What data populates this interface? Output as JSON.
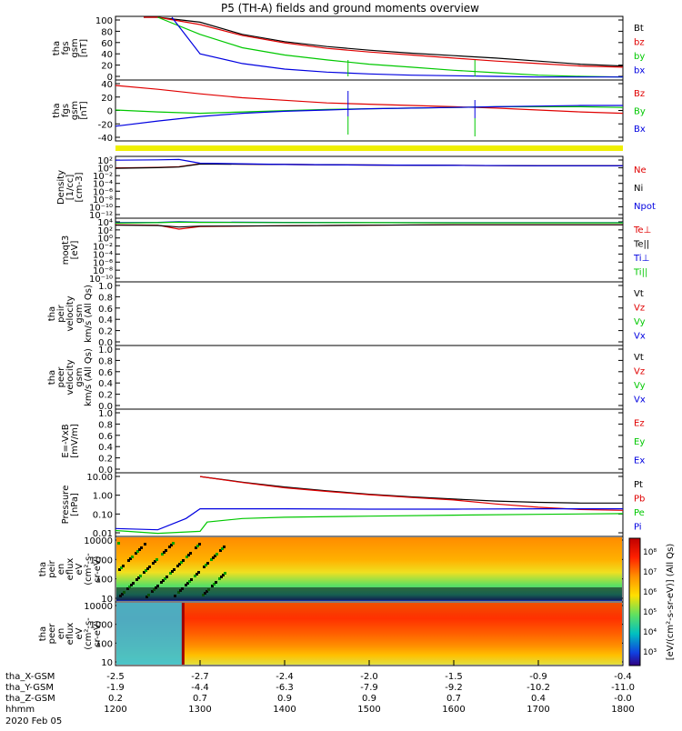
{
  "title": "P5 (TH-A) fields and ground moments overview",
  "date_label": "2020 Feb 05",
  "colors": {
    "black": "#000000",
    "red": "#e00000",
    "green": "#00c800",
    "blue": "#0000e0",
    "yellow": "#f0f000"
  },
  "time_axis": {
    "row_labels": [
      "tha_X-GSM",
      "tha_Y-GSM",
      "tha_Z-GSM",
      "hhmm"
    ],
    "columns": [
      [
        "-2.5",
        "-1.9",
        "0.2",
        "1200"
      ],
      [
        "-2.7",
        "-4.4",
        "0.7",
        "1300"
      ],
      [
        "-2.4",
        "-6.3",
        "0.9",
        "1400"
      ],
      [
        "-2.0",
        "-7.9",
        "0.9",
        "1500"
      ],
      [
        "-1.5",
        "-9.2",
        "0.7",
        "1600"
      ],
      [
        "-0.9",
        "-10.2",
        "0.4",
        "1700"
      ],
      [
        "-0.4",
        "-11.0",
        "-0.0",
        "1800"
      ]
    ]
  },
  "panels": [
    {
      "id": "fgs-gsm-mag",
      "ylabel": [
        "tha",
        "fgs",
        "gsm",
        "[nT]"
      ],
      "ticks": [
        "100",
        "80",
        "60",
        "40",
        "20",
        "0"
      ],
      "legend": [
        {
          "label": "Bt",
          "color": "#000000"
        },
        {
          "label": "bz",
          "color": "#e00000"
        },
        {
          "label": "by",
          "color": "#00c800"
        },
        {
          "label": "bx",
          "color": "#0000e0"
        }
      ]
    },
    {
      "id": "fgs-gsm-comp",
      "ylabel": [
        "tha",
        "fgs",
        "gsm",
        "[nT]"
      ],
      "ticks": [
        "40",
        "20",
        "0",
        "-20",
        "-40"
      ],
      "legend": [
        {
          "label": "Bz",
          "color": "#e00000"
        },
        {
          "label": "By",
          "color": "#00c800"
        },
        {
          "label": "Bx",
          "color": "#0000e0"
        }
      ]
    },
    {
      "id": "density",
      "ylabel": [
        "Density",
        "[1/cc]",
        "[cm-3]"
      ],
      "ticks": [
        "10²",
        "10⁰",
        "10⁻²",
        "10⁻⁴",
        "10⁻⁶",
        "10⁻⁸",
        "10⁻¹⁰",
        "10⁻¹²"
      ],
      "legend": [
        {
          "label": "Ne",
          "color": "#e00000"
        },
        {
          "label": "Ni",
          "color": "#000000"
        },
        {
          "label": "Npot",
          "color": "#0000e0"
        }
      ]
    },
    {
      "id": "temperature",
      "ylabel": [
        "moqt3",
        "[eV]"
      ],
      "ticks": [
        "10⁴",
        "10²",
        "10⁰",
        "10⁻²",
        "10⁻⁴",
        "10⁻⁶",
        "10⁻⁸",
        "10⁻¹⁰"
      ],
      "legend": [
        {
          "label": "Te⊥",
          "color": "#e00000"
        },
        {
          "label": "Te||",
          "color": "#000000"
        },
        {
          "label": "Ti⊥",
          "color": "#0000e0"
        },
        {
          "label": "Ti||",
          "color": "#00c800"
        }
      ]
    },
    {
      "id": "peir-velocity",
      "ylabel": [
        "tha",
        "peir",
        "velocity",
        "gsm",
        "km/s (All Qs)"
      ],
      "ticks": [
        "1.0",
        "0.8",
        "0.6",
        "0.4",
        "0.2",
        "0.0"
      ],
      "legend": [
        {
          "label": "Vt",
          "color": "#000000"
        },
        {
          "label": "Vz",
          "color": "#e00000"
        },
        {
          "label": "Vy",
          "color": "#00c800"
        },
        {
          "label": "Vx",
          "color": "#0000e0"
        }
      ]
    },
    {
      "id": "peer-velocity",
      "ylabel": [
        "tha",
        "peer",
        "velocity",
        "gsm",
        "km/s (All Qs)"
      ],
      "ticks": [
        "1.0",
        "0.8",
        "0.6",
        "0.4",
        "0.2",
        "0.0"
      ],
      "legend": [
        {
          "label": "Vt",
          "color": "#000000"
        },
        {
          "label": "Vz",
          "color": "#e00000"
        },
        {
          "label": "Vy",
          "color": "#00c800"
        },
        {
          "label": "Vx",
          "color": "#0000e0"
        }
      ]
    },
    {
      "id": "efield",
      "ylabel": [
        "E=-VxB",
        "[mV/m]"
      ],
      "ticks": [
        "1.0",
        "0.8",
        "0.6",
        "0.4",
        "0.2",
        "0.0"
      ],
      "legend": [
        {
          "label": "Ez",
          "color": "#e00000"
        },
        {
          "label": "Ey",
          "color": "#00c800"
        },
        {
          "label": "Ex",
          "color": "#0000e0"
        }
      ]
    },
    {
      "id": "pressure",
      "ylabel": [
        "Pressure",
        "[nPa]"
      ],
      "ticks": [
        "10.00",
        "1.00",
        "0.10",
        "0.01"
      ],
      "legend": [
        {
          "label": "Pt",
          "color": "#000000"
        },
        {
          "label": "Pb",
          "color": "#e00000"
        },
        {
          "label": "Pe",
          "color": "#00c800"
        },
        {
          "label": "Pi",
          "color": "#0000e0"
        }
      ]
    },
    {
      "id": "peir-spec",
      "ylabel": [
        "tha",
        "peir",
        "en",
        "eflux",
        "eV",
        "(cm²-s-",
        "sr-eV)"
      ],
      "ticks": [
        "10000",
        "1000",
        "100",
        "10"
      ]
    },
    {
      "id": "peer-spec",
      "ylabel": [
        "tha",
        "peer",
        "en",
        "eflux",
        "eV",
        "(cm²-s-",
        "sr-eV)"
      ],
      "ticks": [
        "10000",
        "1000",
        "100",
        "10"
      ]
    }
  ],
  "colorbar": {
    "ticks": [
      "10⁸",
      "10⁷",
      "10⁶",
      "10⁵",
      "10⁴",
      "10³"
    ],
    "label": "[eV/(cm²-s-sr-eV)] (All Qs)"
  },
  "chart_data": {
    "type": "line",
    "title": "P5 (TH-A) fields and ground moments overview",
    "x_units": "hhmm",
    "x_ticks": [
      "1200",
      "1300",
      "1400",
      "1500",
      "1600",
      "1700",
      "1800"
    ],
    "panels": [
      {
        "id": "fgs-gsm-mag",
        "ylim": [
          0,
          100
        ],
        "series": [
          {
            "name": "Bt",
            "x": [
              "1220",
              "1230",
              "1300",
              "1330",
              "1400",
              "1430",
              "1500",
              "1530",
              "1600",
              "1630",
              "1700",
              "1730",
              "1800"
            ],
            "y": [
              100,
              100,
              92,
              72,
              60,
              52,
              46,
              41,
              37,
              33,
              28,
              23,
              20
            ]
          },
          {
            "name": "bz",
            "x": [
              "1220",
              "1230",
              "1300",
              "1330",
              "1400",
              "1430",
              "1500",
              "1530",
              "1600",
              "1630",
              "1700",
              "1730",
              "1800"
            ],
            "y": [
              100,
              100,
              88,
              70,
              58,
              49,
              43,
              38,
              33,
              28,
              24,
              20,
              18
            ]
          },
          {
            "name": "by",
            "x": [
              "1230",
              "1300",
              "1330",
              "1400",
              "1430",
              "1500",
              "1530",
              "1600",
              "1630",
              "1700",
              "1730",
              "1800"
            ],
            "y": [
              100,
              72,
              50,
              38,
              30,
              23,
              18,
              13,
              9,
              5,
              3,
              2
            ]
          },
          {
            "name": "bx",
            "x": [
              "1240",
              "1300",
              "1330",
              "1400",
              "1430",
              "1500",
              "1530",
              "1600",
              "1630",
              "1700",
              "1730",
              "1800"
            ],
            "y": [
              100,
              40,
              24,
              15,
              10,
              7,
              5,
              4,
              3,
              2,
              2,
              2
            ]
          }
        ]
      },
      {
        "id": "fgs-gsm-comp",
        "ylim": [
          -50,
          40
        ],
        "series": [
          {
            "name": "Bz",
            "x": [
              "1200",
              "1230",
              "1300",
              "1330",
              "1400",
              "1430",
              "1500",
              "1530",
              "1600",
              "1630",
              "1700",
              "1730",
              "1800"
            ],
            "y": [
              33,
              27,
              20,
              14,
              10,
              6,
              4,
              2,
              0,
              -2,
              -5,
              -8,
              -10
            ]
          },
          {
            "name": "By",
            "x": [
              "1200",
              "1230",
              "1300",
              "1330",
              "1400",
              "1430",
              "1500",
              "1530",
              "1600",
              "1630",
              "1700",
              "1730",
              "1800"
            ],
            "y": [
              -5,
              -8,
              -10,
              -8,
              -6,
              -4,
              -3,
              -2,
              -1,
              0,
              0,
              0,
              -1
            ]
          },
          {
            "name": "Bx",
            "x": [
              "1200",
              "1230",
              "1300",
              "1330",
              "1400",
              "1430",
              "1500",
              "1530",
              "1600",
              "1630",
              "1700",
              "1730",
              "1800"
            ],
            "y": [
              -30,
              -22,
              -15,
              -10,
              -7,
              -5,
              -3,
              -2,
              -1,
              0,
              1,
              2,
              2
            ]
          }
        ]
      },
      {
        "id": "density",
        "ylim": [
          1e-12,
          100
        ],
        "scale": "log",
        "series": [
          {
            "name": "Ne",
            "x": [
              "1200",
              "1230",
              "1245",
              "1300",
              "1400",
              "1500",
              "1600",
              "1700",
              "1800"
            ],
            "y": [
              0.3,
              0.4,
              0.6,
              3,
              2,
              1.5,
              1.2,
              1,
              1
            ]
          },
          {
            "name": "Ni",
            "x": [
              "1200",
              "1230",
              "1245",
              "1300",
              "1400",
              "1500",
              "1600",
              "1700",
              "1800"
            ],
            "y": [
              0.25,
              0.35,
              0.5,
              2.5,
              2,
              1.5,
              1.2,
              1,
              1
            ]
          },
          {
            "name": "Npot",
            "x": [
              "1200",
              "1230",
              "1245",
              "1300",
              "1400",
              "1500",
              "1600",
              "1700",
              "1800"
            ],
            "y": [
              20,
              25,
              30,
              4,
              2,
              1.5,
              1.2,
              1,
              1
            ]
          }
        ]
      },
      {
        "id": "temperature",
        "ylim": [
          1e-10,
          10000
        ],
        "scale": "log",
        "series": [
          {
            "name": "Te⊥",
            "x": [
              "1200",
              "1230",
              "1245",
              "1300",
              "1400",
              "1500",
              "1600",
              "1700",
              "1800"
            ],
            "y": [
              500,
              400,
              50,
              200,
              300,
              400,
              500,
              500,
              500
            ]
          },
          {
            "name": "Te||",
            "x": [
              "1200",
              "1230",
              "1245",
              "1300",
              "1400",
              "1500",
              "1600",
              "1700",
              "1800"
            ],
            "y": [
              400,
              350,
              150,
              250,
              300,
              400,
              500,
              500,
              500
            ]
          },
          {
            "name": "Ti⊥",
            "x": [
              "1200",
              "1230",
              "1245",
              "1300",
              "1400",
              "1500",
              "1600",
              "1700",
              "1800"
            ],
            "y": [
              1500,
              1800,
              2500,
              2000,
              1800,
              1600,
              1500,
              1500,
              1500
            ]
          },
          {
            "name": "Ti||",
            "x": [
              "1200",
              "1230",
              "1245",
              "1300",
              "1400",
              "1500",
              "1600",
              "1700",
              "1800"
            ],
            "y": [
              1200,
              1500,
              2000,
              1800,
              1600,
              1500,
              1400,
              1400,
              1400
            ]
          }
        ]
      },
      {
        "id": "peir-velocity",
        "ylim": [
          0,
          1
        ],
        "series": []
      },
      {
        "id": "peer-velocity",
        "ylim": [
          0,
          1
        ],
        "series": []
      },
      {
        "id": "efield",
        "ylim": [
          0,
          1
        ],
        "series": []
      },
      {
        "id": "pressure",
        "ylim": [
          0.005,
          30
        ],
        "scale": "log",
        "series": [
          {
            "name": "Pt",
            "x": [
              "1300",
              "1330",
              "1400",
              "1430",
              "1500",
              "1530",
              "1600",
              "1630",
              "1700",
              "1730",
              "1800"
            ],
            "y": [
              20,
              9,
              4.5,
              2.6,
              1.6,
              1.1,
              0.8,
              0.6,
              0.5,
              0.45,
              0.45
            ]
          },
          {
            "name": "Pb",
            "x": [
              "1300",
              "1330",
              "1400",
              "1430",
              "1500",
              "1530",
              "1600",
              "1630",
              "1700",
              "1730",
              "1800"
            ],
            "y": [
              20,
              8.5,
              4,
              2.4,
              1.5,
              1,
              0.7,
              0.4,
              0.25,
              0.18,
              0.16
            ]
          },
          {
            "name": "Pe",
            "x": [
              "1200",
              "1230",
              "1300",
              "1305",
              "1330",
              "1400",
              "1500",
              "1600",
              "1700",
              "1800"
            ],
            "y": [
              0.009,
              0.006,
              0.008,
              0.03,
              0.05,
              0.06,
              0.07,
              0.08,
              0.09,
              0.1
            ]
          },
          {
            "name": "Pi",
            "x": [
              "1200",
              "1230",
              "1250",
              "1300",
              "1330",
              "1400",
              "1500",
              "1600",
              "1700",
              "1800"
            ],
            "y": [
              0.012,
              0.01,
              0.05,
              0.2,
              0.2,
              0.2,
              0.19,
              0.19,
              0.2,
              0.2
            ]
          }
        ]
      },
      {
        "id": "peir-spec",
        "type": "heatmap",
        "ylim": [
          5,
          20000
        ],
        "scale": "log"
      },
      {
        "id": "peer-spec",
        "type": "heatmap",
        "ylim": [
          5,
          20000
        ],
        "scale": "log"
      }
    ],
    "ephemeris": {
      "hhmm": [
        "1200",
        "1300",
        "1400",
        "1500",
        "1600",
        "1700",
        "1800"
      ],
      "tha_X-GSM": [
        -2.5,
        -2.7,
        -2.4,
        -2.0,
        -1.5,
        -0.9,
        -0.4
      ],
      "tha_Y-GSM": [
        -1.9,
        -4.4,
        -6.3,
        -7.9,
        -9.2,
        -10.2,
        -11.0
      ],
      "tha_Z-GSM": [
        0.2,
        0.7,
        0.9,
        0.9,
        0.7,
        0.4,
        -0.0
      ]
    }
  }
}
